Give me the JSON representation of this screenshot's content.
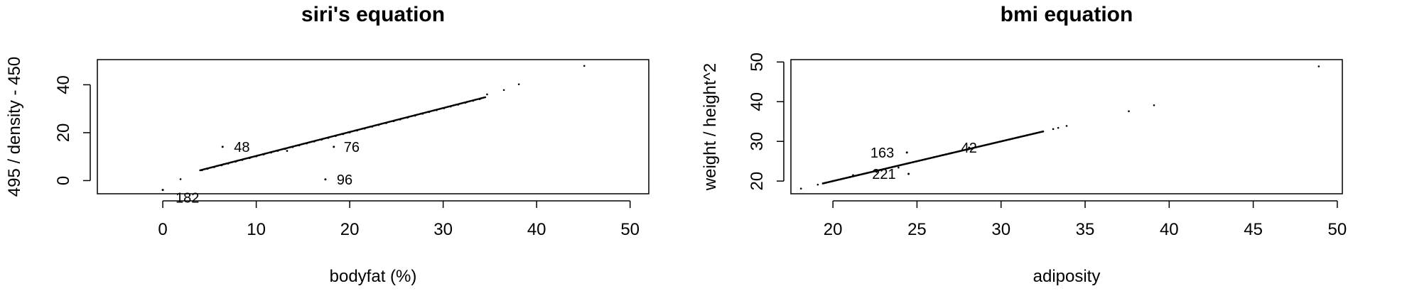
{
  "chart_data": [
    {
      "type": "scatter",
      "title": "siri's equation",
      "xlabel": "bodyfat (%)",
      "ylabel": "495 / density - 450",
      "xlim": [
        -7,
        52
      ],
      "ylim": [
        -5.5,
        50.5
      ],
      "xticks": [
        0,
        10,
        20,
        30,
        40,
        50
      ],
      "yticks": [
        0,
        20,
        40
      ],
      "grid": false,
      "series": [
        {
          "trend": {
            "x_from": 4,
            "x_to": 34.5,
            "slope": 1,
            "intercept": 0.3
          },
          "x": [
            4.2,
            4.8,
            5.5,
            6.3,
            7.0,
            7.8,
            8.5,
            9.3,
            10.0,
            10.8,
            11.6,
            12.3,
            13.1,
            13.9,
            14.6,
            15.4,
            16.2,
            17.0,
            17.7,
            18.5,
            19.3,
            20.0,
            20.8,
            21.6,
            22.4,
            23.1,
            23.9,
            24.7,
            25.4,
            26.2,
            27.0,
            27.8,
            28.5,
            29.3,
            30.1,
            30.8,
            31.6,
            32.4,
            33.2,
            33.9,
            34.7,
            36.5,
            38.1,
            45.1,
            1.9,
            13.3
          ],
          "y": [
            4.3,
            4.9,
            5.6,
            6.4,
            7.1,
            7.9,
            8.6,
            9.4,
            10.1,
            10.9,
            11.7,
            12.4,
            13.2,
            14.0,
            14.7,
            15.5,
            16.3,
            17.1,
            17.8,
            18.6,
            19.4,
            20.1,
            20.9,
            21.7,
            22.5,
            23.2,
            24.0,
            24.8,
            25.5,
            26.3,
            27.1,
            27.9,
            28.6,
            29.4,
            30.2,
            30.9,
            31.7,
            32.5,
            33.3,
            34.0,
            36.0,
            37.8,
            40.2,
            47.9,
            0.6,
            12.4
          ]
        }
      ],
      "labeled_points": [
        {
          "label": "48",
          "x": 6.4,
          "y": 14.1
        },
        {
          "label": "76",
          "x": 18.3,
          "y": 14.1
        },
        {
          "label": "96",
          "x": 17.4,
          "y": 0.5
        },
        {
          "label": "182",
          "x": 0.0,
          "y": -3.9
        }
      ]
    },
    {
      "type": "scatter",
      "title": "bmi equation",
      "xlabel": "adiposity",
      "ylabel": "weight / height^2",
      "xlim": [
        17.5,
        50.3
      ],
      "ylim": [
        16.8,
        50.6
      ],
      "xticks": [
        20,
        25,
        30,
        35,
        40,
        45,
        50
      ],
      "yticks": [
        20,
        30,
        40,
        50
      ],
      "grid": false,
      "series": [
        {
          "trend": {
            "x_from": 19.4,
            "x_to": 32.5,
            "slope": 1,
            "intercept": 0
          },
          "x": [
            19.1,
            19.5,
            20.0,
            20.5,
            21.0,
            21.5,
            22.0,
            22.5,
            23.0,
            23.5,
            24.0,
            24.5,
            25.0,
            25.5,
            26.0,
            26.5,
            27.0,
            27.5,
            28.0,
            28.5,
            29.0,
            29.5,
            30.0,
            30.5,
            31.0,
            31.5,
            32.0,
            32.5,
            33.1,
            33.4,
            33.9,
            37.6,
            39.1,
            48.9,
            18.1,
            21.2,
            22.6,
            23.9
          ],
          "y": [
            19.1,
            19.5,
            20.0,
            20.5,
            21.0,
            21.5,
            22.0,
            22.5,
            23.0,
            23.5,
            24.0,
            24.5,
            25.0,
            25.5,
            26.0,
            26.5,
            27.0,
            27.5,
            28.0,
            28.5,
            29.0,
            29.5,
            30.0,
            30.5,
            31.0,
            31.5,
            32.0,
            32.5,
            33.1,
            33.4,
            33.9,
            37.6,
            39.1,
            48.9,
            18.1,
            21.5,
            22.3,
            23.4
          ]
        }
      ],
      "labeled_points": [
        {
          "label": "163",
          "x": 24.4,
          "y": 27.2
        },
        {
          "label": "42",
          "x": 28.1,
          "y": 28.4
        },
        {
          "label": "221",
          "x": 24.5,
          "y": 21.8
        }
      ]
    }
  ]
}
